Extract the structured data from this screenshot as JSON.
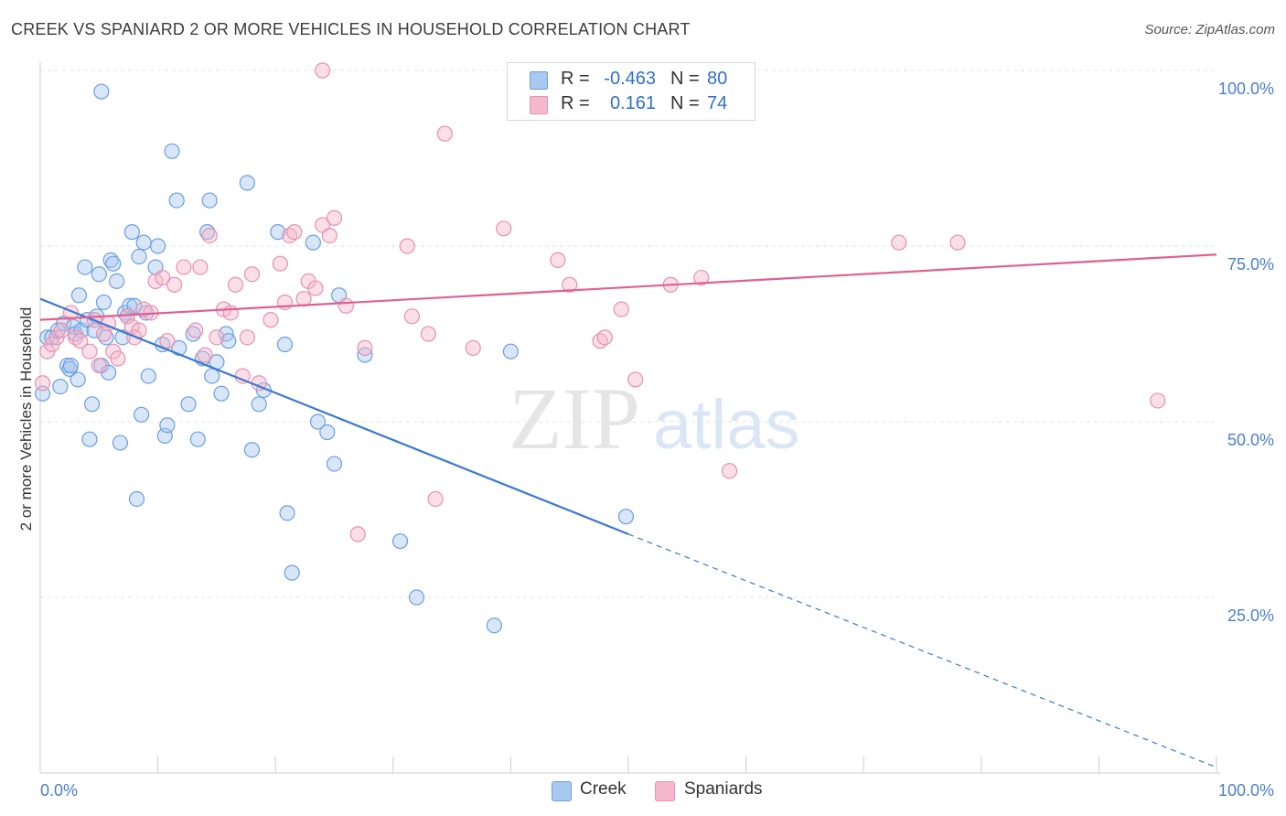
{
  "title": "CREEK VS SPANIARD 2 OR MORE VEHICLES IN HOUSEHOLD CORRELATION CHART",
  "source": "Source: ZipAtlas.com",
  "watermark": {
    "zip": "ZIP",
    "atlas": "atlas"
  },
  "legend_top": [
    {
      "r_label": "R =",
      "r_value": "-0.463",
      "n_label": "N =",
      "n_value": "80",
      "color": "#a8c8f0"
    },
    {
      "r_label": "R =",
      "r_value": "0.161",
      "n_label": "N =",
      "n_value": "74",
      "color": "#f5b8cc"
    }
  ],
  "legend_bottom": [
    {
      "label": "Creek",
      "color": "#a8c8f0"
    },
    {
      "label": "Spaniards",
      "color": "#f5b8cc"
    }
  ],
  "chart_data": {
    "type": "scatter",
    "title": "CREEK VS SPANIARD 2 OR MORE VEHICLES IN HOUSEHOLD CORRELATION CHART",
    "xlabel": "",
    "ylabel": "2 or more Vehicles in Household",
    "xlim": [
      0,
      100
    ],
    "ylim": [
      0,
      100
    ],
    "x_tick_labels": [
      "0.0%",
      "100.0%"
    ],
    "y_tick_labels": [
      "25.0%",
      "50.0%",
      "75.0%",
      "100.0%"
    ],
    "y_ticks": [
      25,
      50,
      75,
      100
    ],
    "grid": true,
    "series": [
      {
        "name": "Creek",
        "color": "#a8c8f0",
        "stroke": "#6a9fe0",
        "line_color": "#3a78d0",
        "trend": {
          "x0": 0,
          "y0": 67.5,
          "x1": 50,
          "y1": 34.0,
          "dash_to_x": 100,
          "dash_to_y": 0.8
        },
        "points": [
          [
            0.2,
            54
          ],
          [
            0.6,
            62
          ],
          [
            1.0,
            62
          ],
          [
            1.5,
            63
          ],
          [
            1.7,
            55
          ],
          [
            2.0,
            64
          ],
          [
            2.3,
            58
          ],
          [
            2.5,
            57.5
          ],
          [
            2.6,
            58
          ],
          [
            2.8,
            63.5
          ],
          [
            3.0,
            62.5
          ],
          [
            3.3,
            68
          ],
          [
            3.5,
            63
          ],
          [
            3.8,
            72
          ],
          [
            4.0,
            64.5
          ],
          [
            4.2,
            47.5
          ],
          [
            4.4,
            52.5
          ],
          [
            4.6,
            63
          ],
          [
            4.8,
            65
          ],
          [
            5.0,
            71
          ],
          [
            5.2,
            58
          ],
          [
            5.4,
            67
          ],
          [
            5.6,
            62
          ],
          [
            5.8,
            57
          ],
          [
            6.0,
            73
          ],
          [
            6.2,
            72.5
          ],
          [
            6.5,
            70
          ],
          [
            6.8,
            47
          ],
          [
            7.0,
            62
          ],
          [
            7.2,
            65.5
          ],
          [
            7.4,
            65
          ],
          [
            7.6,
            66.5
          ],
          [
            7.8,
            77
          ],
          [
            8.0,
            66.5
          ],
          [
            8.2,
            39
          ],
          [
            8.4,
            73.5
          ],
          [
            8.6,
            51
          ],
          [
            8.8,
            75.5
          ],
          [
            9.0,
            65.5
          ],
          [
            9.2,
            56.5
          ],
          [
            9.8,
            72
          ],
          [
            10.0,
            75
          ],
          [
            10.4,
            61
          ],
          [
            10.6,
            48
          ],
          [
            10.8,
            49.5
          ],
          [
            11.2,
            88.5
          ],
          [
            11.6,
            81.5
          ],
          [
            11.8,
            60.5
          ],
          [
            12.6,
            52.5
          ],
          [
            13.0,
            62.5
          ],
          [
            13.4,
            47.5
          ],
          [
            13.8,
            59
          ],
          [
            14.2,
            77
          ],
          [
            14.4,
            81.5
          ],
          [
            14.6,
            56.5
          ],
          [
            15.0,
            58.5
          ],
          [
            15.4,
            54
          ],
          [
            15.8,
            62.5
          ],
          [
            16.0,
            61.5
          ],
          [
            17.6,
            84
          ],
          [
            18.0,
            46
          ],
          [
            18.6,
            52.5
          ],
          [
            20.2,
            77
          ],
          [
            20.8,
            61
          ],
          [
            21.0,
            37
          ],
          [
            21.4,
            28.5
          ],
          [
            23.2,
            75.5
          ],
          [
            23.6,
            50
          ],
          [
            24.4,
            48.5
          ],
          [
            25.0,
            44
          ],
          [
            25.4,
            68
          ],
          [
            27.6,
            59.5
          ],
          [
            30.6,
            33
          ],
          [
            32.0,
            25
          ],
          [
            38.6,
            21
          ],
          [
            40.0,
            60
          ],
          [
            49.8,
            36.5
          ],
          [
            5.2,
            97
          ],
          [
            19.0,
            54.5
          ],
          [
            3.2,
            56
          ]
        ]
      },
      {
        "name": "Spaniards",
        "color": "#f5b8cc",
        "stroke": "#e890b0",
        "line_color": "#e06090",
        "trend": {
          "x0": 0,
          "y0": 64.5,
          "x1": 100,
          "y1": 73.8
        },
        "points": [
          [
            0.2,
            55.5
          ],
          [
            0.6,
            60
          ],
          [
            1.0,
            61
          ],
          [
            1.4,
            62
          ],
          [
            1.8,
            63
          ],
          [
            2.6,
            65.5
          ],
          [
            3.0,
            62
          ],
          [
            3.4,
            61.5
          ],
          [
            4.2,
            60
          ],
          [
            4.6,
            64.5
          ],
          [
            5.0,
            58
          ],
          [
            5.4,
            62.5
          ],
          [
            5.8,
            64
          ],
          [
            6.2,
            60
          ],
          [
            6.6,
            59
          ],
          [
            7.4,
            65
          ],
          [
            7.8,
            63.5
          ],
          [
            8.0,
            62
          ],
          [
            8.4,
            63
          ],
          [
            8.8,
            66
          ],
          [
            9.4,
            65.5
          ],
          [
            9.8,
            70
          ],
          [
            10.4,
            70.5
          ],
          [
            10.8,
            61.5
          ],
          [
            11.4,
            69.5
          ],
          [
            12.2,
            72
          ],
          [
            13.2,
            63
          ],
          [
            13.6,
            72
          ],
          [
            14.0,
            59.5
          ],
          [
            14.4,
            76.5
          ],
          [
            15.0,
            62
          ],
          [
            15.6,
            66
          ],
          [
            16.2,
            65.5
          ],
          [
            16.6,
            69.5
          ],
          [
            17.2,
            56.5
          ],
          [
            17.6,
            62
          ],
          [
            18.0,
            71
          ],
          [
            18.6,
            55.5
          ],
          [
            19.6,
            64.5
          ],
          [
            20.4,
            72.5
          ],
          [
            20.8,
            67
          ],
          [
            21.2,
            76.5
          ],
          [
            21.6,
            77
          ],
          [
            22.4,
            67.5
          ],
          [
            22.8,
            70
          ],
          [
            23.4,
            69
          ],
          [
            24.0,
            78
          ],
          [
            24.6,
            76.5
          ],
          [
            25.0,
            79
          ],
          [
            26.0,
            66.5
          ],
          [
            27.0,
            34
          ],
          [
            27.6,
            60.5
          ],
          [
            31.2,
            75
          ],
          [
            31.6,
            65
          ],
          [
            33.0,
            62.5
          ],
          [
            33.6,
            39
          ],
          [
            34.4,
            91
          ],
          [
            36.8,
            60.5
          ],
          [
            39.4,
            77.5
          ],
          [
            44.0,
            73
          ],
          [
            45.0,
            69.5
          ],
          [
            47.6,
            61.5
          ],
          [
            48.0,
            62
          ],
          [
            49.4,
            66
          ],
          [
            50.6,
            56
          ],
          [
            53.6,
            69.5
          ],
          [
            56.2,
            70.5
          ],
          [
            58.6,
            43
          ],
          [
            60.0,
            94
          ],
          [
            73.0,
            75.5
          ],
          [
            78.0,
            75.5
          ],
          [
            95.0,
            53
          ],
          [
            24.0,
            100
          ],
          [
            49.0,
            100
          ]
        ]
      }
    ]
  }
}
